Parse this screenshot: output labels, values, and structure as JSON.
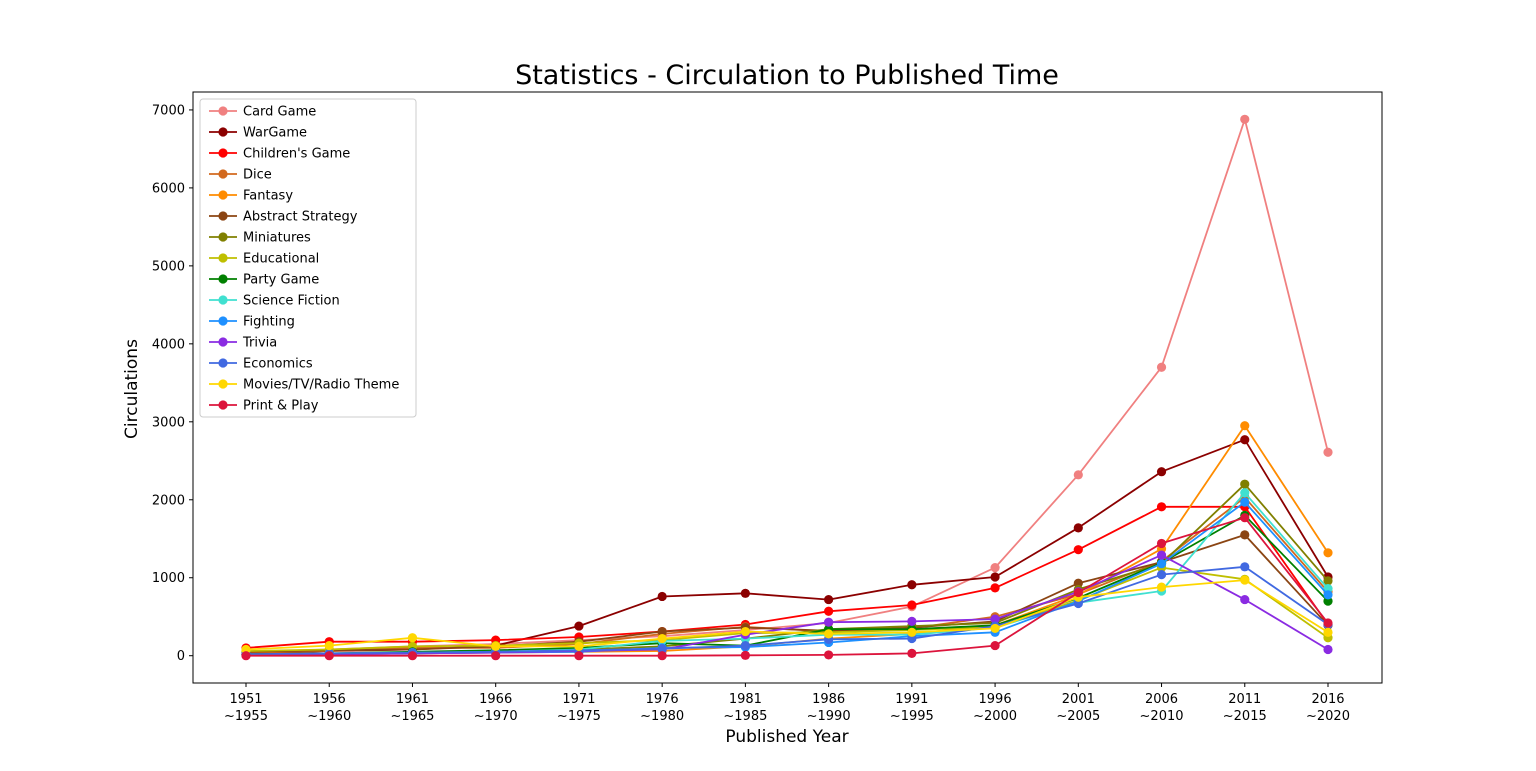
{
  "chart_data": {
    "type": "line",
    "title": "Statistics - Circulation to Published Time",
    "xlabel": "Published Year",
    "ylabel": "Circulations",
    "categories": [
      [
        "1951",
        "~1955"
      ],
      [
        "1956",
        "~1960"
      ],
      [
        "1961",
        "~1965"
      ],
      [
        "1966",
        "~1970"
      ],
      [
        "1971",
        "~1975"
      ],
      [
        "1976",
        "~1980"
      ],
      [
        "1981",
        "~1985"
      ],
      [
        "1986",
        "~1990"
      ],
      [
        "1991",
        "~1995"
      ],
      [
        "1996",
        "~2000"
      ],
      [
        "2001",
        "~2005"
      ],
      [
        "2006",
        "~2010"
      ],
      [
        "2011",
        "~2015"
      ],
      [
        "2016",
        "~2020"
      ]
    ],
    "ylim": [
      -350,
      7230
    ],
    "yticks": [
      0,
      1000,
      2000,
      3000,
      4000,
      5000,
      6000,
      7000
    ],
    "grid": false,
    "legend_position": "top-left",
    "series": [
      {
        "name": "Card Game",
        "color": "#f08080",
        "values": [
          50,
          80,
          120,
          150,
          200,
          250,
          330,
          420,
          630,
          1130,
          2320,
          3700,
          6880,
          2610
        ]
      },
      {
        "name": "WarGame",
        "color": "#8b0000",
        "values": [
          20,
          60,
          80,
          130,
          380,
          760,
          800,
          720,
          910,
          1010,
          1640,
          2360,
          2770,
          1010
        ]
      },
      {
        "name": "Children's Game",
        "color": "#ff0000",
        "values": [
          100,
          180,
          180,
          200,
          240,
          310,
          400,
          570,
          650,
          870,
          1360,
          1910,
          1910,
          400
        ]
      },
      {
        "name": "Dice",
        "color": "#d2691e",
        "values": [
          40,
          60,
          100,
          100,
          150,
          280,
          370,
          310,
          350,
          500,
          790,
          1210,
          2030,
          820
        ]
      },
      {
        "name": "Fantasy",
        "color": "#ff8c00",
        "values": [
          10,
          20,
          30,
          40,
          50,
          60,
          120,
          220,
          280,
          390,
          780,
          1370,
          2950,
          1320
        ]
      },
      {
        "name": "Abstract Strategy",
        "color": "#8b4513",
        "values": [
          50,
          70,
          80,
          120,
          180,
          310,
          360,
          320,
          360,
          440,
          930,
          1200,
          1550,
          390
        ]
      },
      {
        "name": "Miniatures",
        "color": "#808000",
        "values": [
          10,
          20,
          30,
          50,
          80,
          120,
          220,
          340,
          380,
          420,
          850,
          1180,
          2200,
          960
        ]
      },
      {
        "name": "Educational",
        "color": "#bfbf00",
        "values": [
          60,
          80,
          120,
          130,
          160,
          200,
          290,
          300,
          330,
          370,
          710,
          1130,
          980,
          230
        ]
      },
      {
        "name": "Party Game",
        "color": "#008000",
        "values": [
          20,
          30,
          50,
          70,
          100,
          160,
          130,
          340,
          340,
          390,
          740,
          1190,
          1800,
          700
        ]
      },
      {
        "name": "Science Fiction",
        "color": "#40e0d0",
        "values": [
          10,
          30,
          40,
          50,
          80,
          190,
          220,
          270,
          270,
          360,
          680,
          830,
          2090,
          860
        ]
      },
      {
        "name": "Fighting",
        "color": "#1e90ff",
        "values": [
          10,
          20,
          30,
          40,
          50,
          100,
          110,
          170,
          250,
          300,
          700,
          1180,
          1970,
          780
        ]
      },
      {
        "name": "Trivia",
        "color": "#8a2be2",
        "values": [
          10,
          20,
          30,
          40,
          60,
          80,
          270,
          430,
          440,
          470,
          820,
          1290,
          720,
          80
        ]
      },
      {
        "name": "Economics",
        "color": "#4169e1",
        "values": [
          20,
          30,
          40,
          50,
          70,
          90,
          130,
          210,
          220,
          380,
          670,
          1040,
          1140,
          400
        ]
      },
      {
        "name": "Movies/TV/Radio Theme",
        "color": "#ffd700",
        "values": [
          80,
          130,
          230,
          120,
          120,
          220,
          310,
          280,
          300,
          350,
          750,
          880,
          970,
          300
        ]
      },
      {
        "name": "Print & Play",
        "color": "#dc143c",
        "values": [
          0,
          0,
          0,
          0,
          0,
          0,
          5,
          10,
          30,
          130,
          810,
          1440,
          1770,
          420
        ]
      }
    ]
  }
}
